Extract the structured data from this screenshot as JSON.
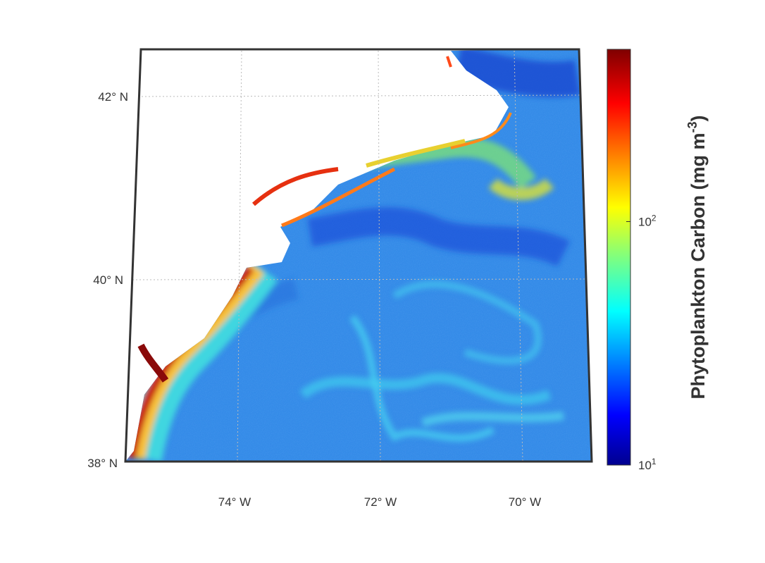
{
  "map": {
    "lat_labels": [
      "42° N",
      "40° N",
      "38° N"
    ],
    "lon_labels": [
      "74° W",
      "72° W",
      "70° W"
    ],
    "colorbar": {
      "label_parts": [
        "Phytoplankton Carbon (mg m",
        "-3",
        ")"
      ],
      "scale": "log",
      "lim": [
        10,
        510
      ],
      "ticks": [
        {
          "value": 10,
          "base": "10",
          "exponent": "1"
        },
        {
          "value": 100,
          "base": "10",
          "exponent": "2"
        }
      ]
    }
  }
}
